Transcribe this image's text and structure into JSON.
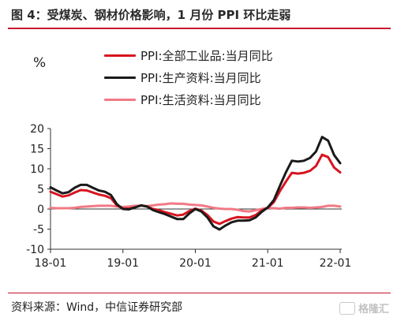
{
  "title": "图 4：受煤炭、钢材价格影响，1 月份 PPI 环比走弱",
  "source": "资料来源：Wind，中信证券研究部",
  "logo_text": "格隆汇",
  "colors": {
    "accent": "#c8102e",
    "series1": "#d7141f",
    "series2": "#1a1a1a",
    "series3": "#f07a85"
  },
  "chart_data": {
    "type": "line",
    "unit": "%",
    "ylim": [
      -10,
      20
    ],
    "yticks": [
      -10,
      -5,
      0,
      5,
      10,
      15,
      20
    ],
    "xticks": [
      "18-01",
      "19-01",
      "20-01",
      "21-01",
      "22-01"
    ],
    "x_start": "2018-01",
    "legend_position": "top-left",
    "grid": false,
    "series": [
      {
        "name": "PPI:全部工业品:当月同比",
        "values": [
          4.3,
          3.7,
          3.1,
          3.4,
          4.1,
          4.7,
          4.6,
          4.1,
          3.6,
          3.3,
          2.7,
          0.9,
          0.1,
          0.1,
          0.4,
          0.9,
          0.6,
          0.0,
          -0.3,
          -0.8,
          -1.2,
          -1.6,
          -1.4,
          -0.5,
          0.1,
          -0.4,
          -1.5,
          -3.1,
          -3.7,
          -3.0,
          -2.4,
          -2.0,
          -2.1,
          -2.1,
          -1.5,
          -0.4,
          0.3,
          1.7,
          4.4,
          6.8,
          9.0,
          8.8,
          9.0,
          9.5,
          10.7,
          13.5,
          12.9,
          10.3,
          9.1
        ]
      },
      {
        "name": "PPI:生产资料:当月同比",
        "values": [
          5.4,
          4.6,
          3.9,
          4.2,
          5.3,
          6.0,
          6.0,
          5.3,
          4.6,
          4.3,
          3.5,
          1.2,
          0.0,
          -0.1,
          0.4,
          0.9,
          0.6,
          -0.3,
          -0.8,
          -1.3,
          -1.9,
          -2.5,
          -2.5,
          -1.1,
          0.0,
          -0.6,
          -2.1,
          -4.3,
          -5.1,
          -4.1,
          -3.3,
          -2.9,
          -2.9,
          -2.8,
          -2.1,
          -0.7,
          0.4,
          2.2,
          5.7,
          9.1,
          12.0,
          11.8,
          12.0,
          12.7,
          14.3,
          17.9,
          17.0,
          13.4,
          11.4
        ]
      },
      {
        "name": "PPI:生活资料:当月同比",
        "values": [
          0.3,
          0.2,
          0.2,
          0.2,
          0.3,
          0.5,
          0.6,
          0.7,
          0.8,
          0.8,
          0.8,
          0.6,
          0.5,
          0.6,
          0.8,
          0.8,
          0.7,
          0.9,
          1.1,
          1.2,
          1.4,
          1.3,
          1.3,
          1.1,
          1.0,
          0.9,
          0.6,
          0.3,
          0.1,
          0.0,
          0.0,
          -0.2,
          -0.5,
          -0.6,
          -0.3,
          0.0,
          0.3,
          0.2,
          0.1,
          0.3,
          0.3,
          0.4,
          0.4,
          0.3,
          0.4,
          0.5,
          0.8,
          0.8,
          0.6
        ]
      }
    ]
  }
}
